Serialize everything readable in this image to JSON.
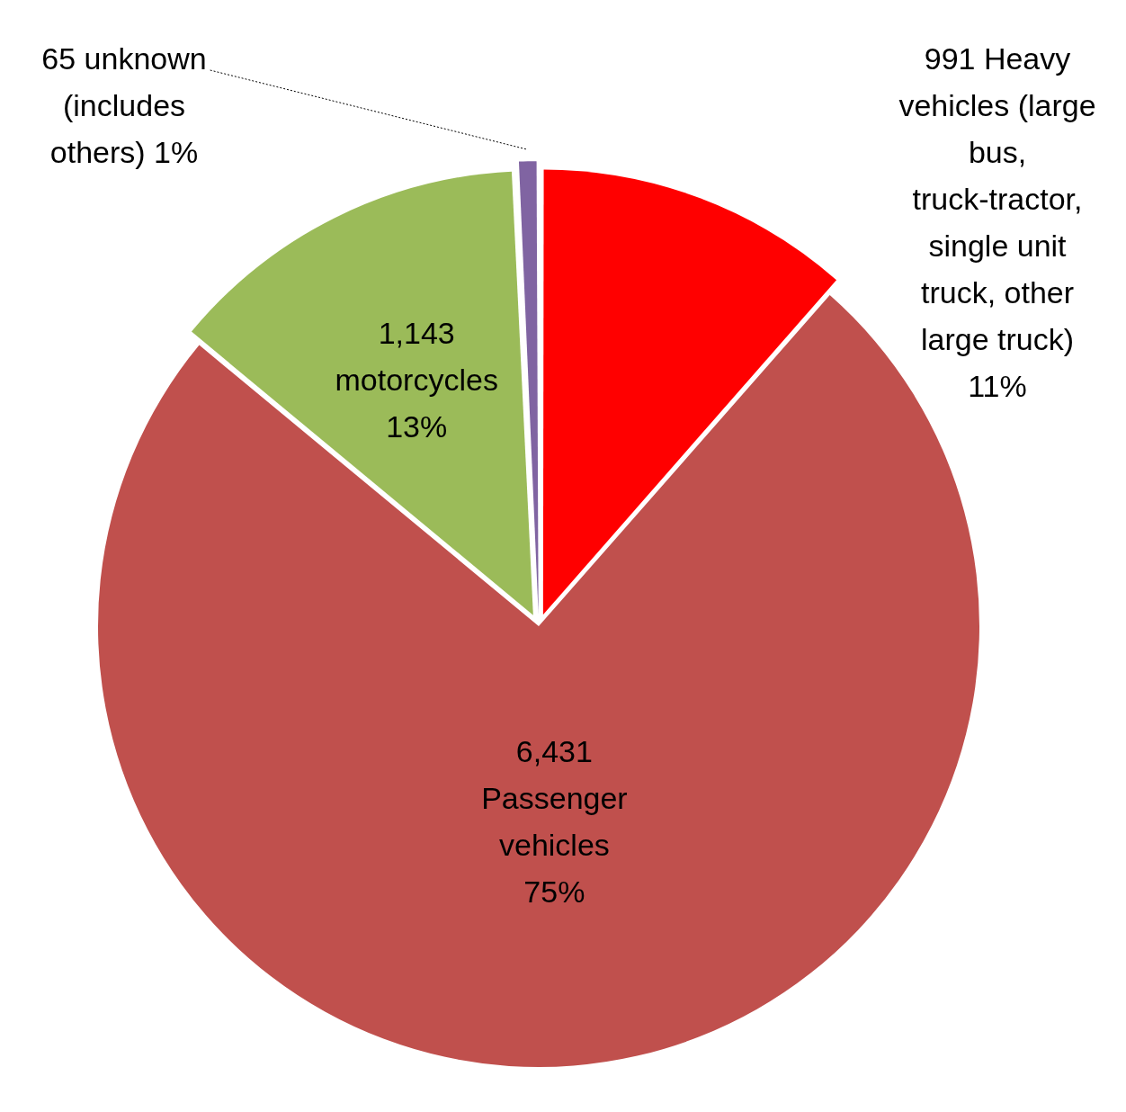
{
  "chart_data": {
    "type": "pie",
    "categories": [
      "Heavy vehicles (large bus, truck-tractor, single unit truck, other large truck) 11%",
      "Passenger vehicles 75%",
      "motorcycles 13%",
      "unknown (includes others) 1%"
    ],
    "values": [
      991,
      6431,
      1143,
      65
    ],
    "value_labels": [
      "991",
      "6,431",
      "1,143",
      "65"
    ],
    "colors": [
      "#ff0000",
      "#c0504d",
      "#9bbb59",
      "#8064a2"
    ],
    "legend": false
  }
}
